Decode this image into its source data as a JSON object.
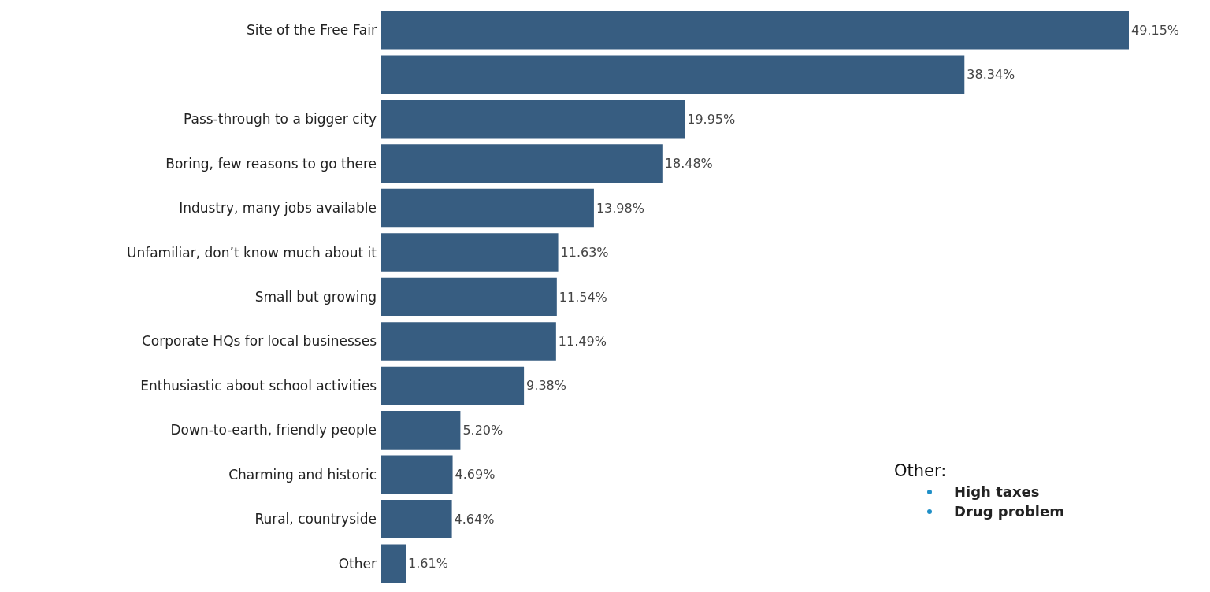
{
  "chart_data": {
    "type": "bar",
    "orientation": "horizontal",
    "color": "#375d81",
    "categories": [
      "Site of the Free Fair",
      null,
      "Pass-through to a bigger city",
      "Boring, few reasons to go there",
      "Industry, many jobs available",
      "Unfamiliar, don’t know much about it",
      "Small but growing",
      "Corporate HQs for local businesses",
      "Enthusiastic about school activities",
      "Down-to-earth, friendly people",
      "Charming and historic",
      "Rural, countryside",
      "Other"
    ],
    "values": [
      49.15,
      38.34,
      19.95,
      18.48,
      13.98,
      11.63,
      11.54,
      11.49,
      9.38,
      5.2,
      4.69,
      4.64,
      1.61
    ],
    "value_labels": [
      "49.15%",
      "38.34%",
      "19.95%",
      "18.48%",
      "13.98%",
      "11.63%",
      "11.54%",
      "11.49%",
      "9.38%",
      "5.20%",
      "4.69%",
      "4.64%",
      "1.61%"
    ],
    "annotations": [
      "Other:",
      "High taxes",
      "Drug problem"
    ]
  }
}
